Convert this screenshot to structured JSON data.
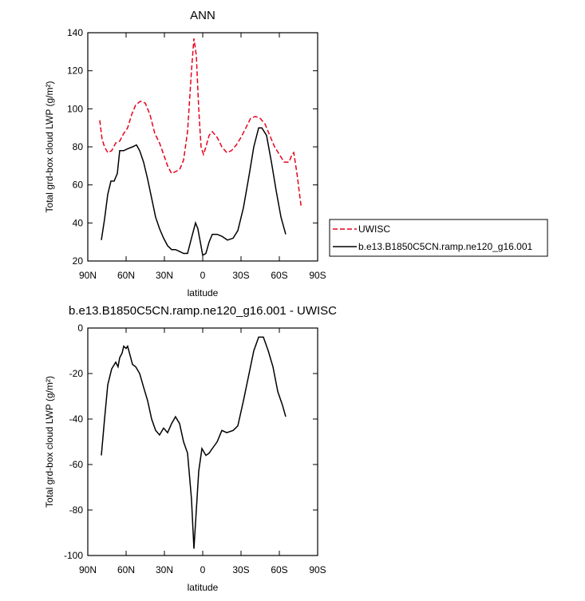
{
  "chart_data": [
    {
      "type": "line",
      "title": "ANN",
      "xlabel": "latitude",
      "ylabel": "Total grd-box cloud LWP (g/m²)",
      "xlim": [
        90,
        -90
      ],
      "ylim": [
        20,
        140
      ],
      "xticks": [
        {
          "value": 90,
          "label": "90N"
        },
        {
          "value": 60,
          "label": "60N"
        },
        {
          "value": 30,
          "label": "30N"
        },
        0,
        {
          "value": -30,
          "label": "30S"
        },
        {
          "value": -60,
          "label": "60S"
        },
        {
          "value": -90,
          "label": "90S"
        }
      ],
      "yticks": [
        20,
        40,
        60,
        80,
        100,
        120,
        140
      ],
      "series": [
        {
          "name": "UWISC",
          "color": "#e8001c",
          "dash": true,
          "x": [
            80.6,
            78.8,
            76.9,
            74.4,
            71.3,
            68.1,
            65,
            61.9,
            58.8,
            55.6,
            52.5,
            48.8,
            45,
            41.3,
            37.5,
            33.8,
            30.6,
            27.5,
            24.4,
            21.3,
            18.1,
            15,
            11.9,
            8.8,
            6.9,
            5,
            3.1,
            1.3,
            -0.6,
            -2.5,
            -5,
            -7.5,
            -11.3,
            -15,
            -18.8,
            -22.5,
            -26.3,
            -30,
            -33.8,
            -37.5,
            -41.3,
            -45,
            -48.8,
            -52.5,
            -56.3,
            -60,
            -63.8,
            -67.5,
            -70,
            -71.3,
            -73.8,
            -77
          ],
          "values": [
            94,
            84,
            80,
            77,
            78,
            82,
            83,
            87,
            90,
            97,
            102,
            104,
            103,
            97,
            87,
            82,
            76,
            70,
            66,
            67,
            68,
            73,
            88,
            120,
            137,
            128,
            100,
            80,
            76,
            80,
            86,
            88,
            85,
            80,
            77,
            78,
            81,
            85,
            90,
            95,
            96,
            95,
            92,
            86,
            80,
            76,
            72,
            72,
            76,
            77,
            66,
            49
          ]
        },
        {
          "name": "b.e13.B1850C5CN.ramp.ne120_g16.001",
          "color": "#000000",
          "dash": false,
          "x": [
            79.4,
            76.9,
            74.4,
            71.9,
            69.4,
            66.9,
            65,
            61.9,
            58.8,
            55,
            51.9,
            49.4,
            46.3,
            43.1,
            40,
            36.9,
            33.8,
            30.6,
            27.5,
            24.4,
            21.3,
            18.1,
            15,
            11.9,
            8.8,
            5.6,
            3.8,
            1.9,
            0,
            -2.5,
            -5,
            -7.5,
            -11.3,
            -15,
            -19.4,
            -23.8,
            -27.5,
            -31.9,
            -36.3,
            -40,
            -43.8,
            -46.3,
            -50,
            -53.8,
            -57.5,
            -61.3,
            -65
          ],
          "values": [
            31,
            42,
            55,
            62,
            62,
            66,
            78,
            78,
            79,
            80,
            81,
            78,
            72,
            63,
            53,
            43,
            37,
            32,
            28,
            26,
            26,
            25,
            24,
            24,
            32,
            40,
            37,
            30,
            23,
            24,
            30,
            34,
            34,
            33,
            31,
            32,
            36,
            48,
            65,
            80,
            90,
            90,
            86,
            72,
            57,
            43,
            34
          ]
        }
      ]
    },
    {
      "type": "line",
      "title": "b.e13.B1850C5CN.ramp.ne120_g16.001 - UWISC",
      "xlabel": "latitude",
      "ylabel": "Total grd-box cloud LWP (g/m²)",
      "xlim": [
        90,
        -90
      ],
      "ylim": [
        -100,
        0
      ],
      "xticks": [
        {
          "value": 90,
          "label": "90N"
        },
        {
          "value": 60,
          "label": "60N"
        },
        {
          "value": 30,
          "label": "30N"
        },
        0,
        {
          "value": -30,
          "label": "30S"
        },
        {
          "value": -60,
          "label": "60S"
        },
        {
          "value": -90,
          "label": "90S"
        }
      ],
      "yticks": [
        -100,
        -80,
        -60,
        -40,
        -20,
        0
      ],
      "series": [
        {
          "name": "b.e13.B1850C5CN.ramp.ne120_g16.001 - UWISC",
          "color": "#000000",
          "dash": false,
          "x": [
            79.4,
            76.9,
            74.4,
            71.3,
            68.1,
            66.3,
            65,
            63.1,
            61.9,
            60,
            58.8,
            56.9,
            55,
            52.5,
            49.4,
            46.3,
            43.1,
            40,
            36.9,
            33.8,
            30.6,
            27.5,
            24.4,
            21.3,
            18.1,
            15,
            11.9,
            8.8,
            6.9,
            5,
            3.1,
            0.6,
            -2.5,
            -5,
            -7.5,
            -11.3,
            -15,
            -18.8,
            -23.8,
            -27.5,
            -31.9,
            -36.3,
            -40,
            -43.8,
            -47.5,
            -51.3,
            -55,
            -58.8,
            -62.5,
            -65
          ],
          "values": [
            -56,
            -40,
            -25,
            -18,
            -15,
            -17,
            -13,
            -11,
            -8,
            -9,
            -8,
            -12,
            -16,
            -17,
            -20,
            -26,
            -32,
            -40,
            -45,
            -47,
            -44,
            -46,
            -42,
            -39,
            -42,
            -50,
            -55,
            -75,
            -97,
            -80,
            -63,
            -53,
            -56,
            -55,
            -53,
            -50,
            -45,
            -46,
            -45,
            -43,
            -32,
            -20,
            -10,
            -4,
            -4,
            -10,
            -17,
            -28,
            -34,
            -39
          ]
        }
      ]
    }
  ]
}
